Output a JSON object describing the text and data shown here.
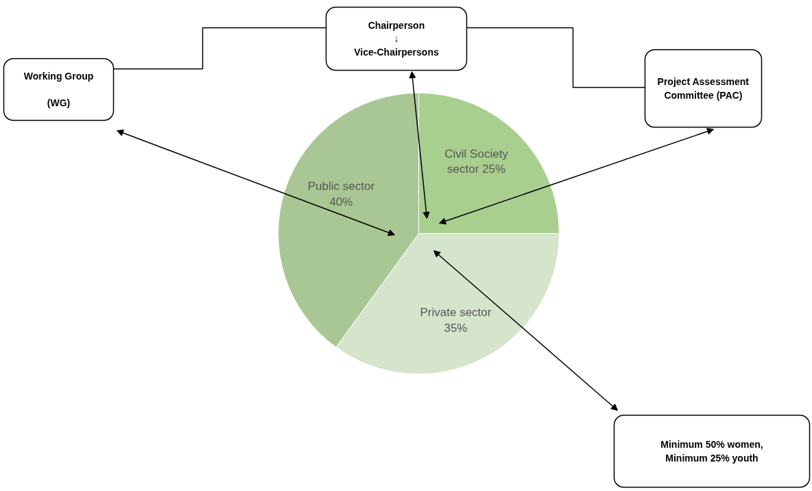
{
  "chart_data": {
    "type": "pie",
    "categories": [
      "Civil Society sector",
      "Private sector",
      "Public sector"
    ],
    "values": [
      25,
      35,
      40
    ],
    "colors": [
      "#a8cf8e",
      "#d6e4cc",
      "#a9c795"
    ],
    "value_labels": [
      "25%",
      "35%",
      "40%"
    ],
    "annotations": [
      "Chairperson\n↓\nVice-Chairpersons",
      "Working Group\n\n(WG)",
      "Project Assessment\nCommittee (PAC)",
      "Minimum 50% women,\nMinimum 25% youth"
    ]
  }
}
